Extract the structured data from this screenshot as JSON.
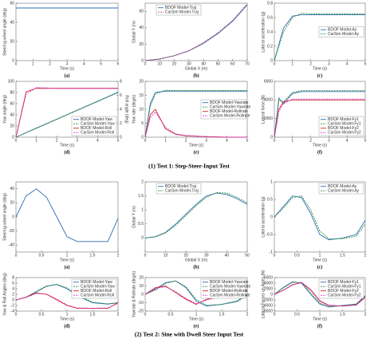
{
  "figure": {
    "captions": [
      "(1) Test 1: Step-Steer-Input Test",
      "(2) Test 2: Sine with Dwell Steer Input Test"
    ]
  },
  "chart_data": [
    {
      "type": "line",
      "label": "(a)",
      "xlabel": "Time (s)",
      "ylabel": "Steering wheel angle (deg)",
      "xlim": [
        0,
        6
      ],
      "xticks": [
        0,
        1,
        2,
        3,
        4,
        5,
        6
      ],
      "ylim": [
        0,
        60
      ],
      "yticks": [
        0,
        20,
        40,
        60
      ],
      "x": [
        0,
        6
      ],
      "series": [
        {
          "color": "#2c6fb5",
          "dashed": false,
          "values": [
            55,
            55
          ]
        }
      ]
    },
    {
      "type": "line",
      "label": "(b)",
      "xlabel": "Global X (m)",
      "ylabel": "Global Y (m)",
      "legend": "upper left",
      "xlim": [
        0,
        70
      ],
      "xticks": [
        0,
        10,
        20,
        30,
        40,
        50,
        60,
        70
      ],
      "ylim": [
        0,
        70
      ],
      "yticks": [
        0,
        20,
        40,
        60
      ],
      "x": [
        0,
        10,
        20,
        30,
        40,
        50,
        60,
        70
      ],
      "series": [
        {
          "name": "BDOF Model-Traj",
          "color": "#2c6fb5",
          "dashed": false,
          "values": [
            0,
            2,
            6,
            12,
            21,
            33,
            48,
            68
          ]
        },
        {
          "name": "CarSim Model-Traj",
          "color": "#cc3366",
          "dashed": true,
          "values": [
            0,
            2,
            6,
            12,
            22,
            34,
            49,
            69
          ]
        }
      ]
    },
    {
      "type": "line",
      "label": "(c)",
      "xlabel": "Time (s)",
      "ylabel": "Lateral acceleration (g)",
      "legend": "center right",
      "xlim": [
        0,
        5
      ],
      "xticks": [
        0,
        1,
        2,
        3,
        4,
        5
      ],
      "ylim": [
        0,
        0.8
      ],
      "yticks": [
        0,
        0.2,
        0.4,
        0.6,
        0.8
      ],
      "x": [
        0,
        0.5,
        1,
        1.5,
        2,
        3,
        4,
        5
      ],
      "series": [
        {
          "name": "BDOF Model-Ay",
          "color": "#2c6fb5",
          "dashed": false,
          "values": [
            0,
            0.45,
            0.62,
            0.64,
            0.64,
            0.64,
            0.64,
            0.64
          ]
        },
        {
          "name": "CarSim Model-Ay",
          "color": "#2e8b3a",
          "dashed": true,
          "values": [
            0,
            0.4,
            0.6,
            0.66,
            0.65,
            0.65,
            0.65,
            0.65
          ]
        }
      ]
    },
    {
      "type": "line",
      "label": "(d)",
      "xlabel": "Time (s)",
      "ylabel": "Yaw angle (deg)",
      "y2label": "Roll angle (deg)",
      "legend": "lower right",
      "xlim": [
        0,
        5
      ],
      "xticks": [
        0,
        1,
        2,
        3,
        4,
        5
      ],
      "ylim": [
        0,
        100
      ],
      "yticks": [
        0,
        20,
        40,
        60,
        80,
        100
      ],
      "y2lim": [
        0,
        8
      ],
      "y2ticks": [
        0,
        2,
        4,
        6,
        8
      ],
      "x": [
        0,
        0.5,
        1,
        2,
        3,
        4,
        5
      ],
      "series": [
        {
          "name": "BDOF Model-Yaw",
          "color": "#2c6fb5",
          "dashed": false,
          "values": [
            0,
            8,
            16,
            32,
            48,
            64,
            80
          ]
        },
        {
          "name": "CarSim Model-Yaw",
          "color": "#2e8b3a",
          "dashed": true,
          "values": [
            0,
            8.3,
            16.5,
            32.5,
            48.6,
            64.5,
            81
          ]
        },
        {
          "name": "BDOF Model-Roll",
          "color": "#d62728",
          "dashed": false,
          "axis": "y2",
          "values": [
            0,
            6.5,
            7,
            7,
            7,
            7,
            7
          ]
        },
        {
          "name": "CarSim Model-Roll",
          "color": "#cc33cc",
          "dashed": true,
          "axis": "y2",
          "values": [
            0,
            6.2,
            7.1,
            7,
            7,
            7,
            7
          ]
        }
      ]
    },
    {
      "type": "line",
      "label": "(e)",
      "xlabel": "Time (s)",
      "ylabel": "Yaw rate (deg/s)",
      "legend": "center right",
      "xlim": [
        0,
        5
      ],
      "xticks": [
        0,
        1,
        2,
        3,
        4,
        5
      ],
      "ylim": [
        0,
        20
      ],
      "yticks": [
        0,
        5,
        10,
        15,
        20
      ],
      "x": [
        0,
        0.25,
        0.5,
        1,
        1.5,
        2,
        3,
        4,
        5
      ],
      "series": [
        {
          "name": "BDOF Model-Yawrate",
          "color": "#2c6fb5",
          "dashed": false,
          "values": [
            0,
            12,
            16,
            16.5,
            16.5,
            16.5,
            16.5,
            16.5,
            16.5
          ]
        },
        {
          "name": "CarSim Model-Yawrate",
          "color": "#2e8b3a",
          "dashed": true,
          "values": [
            0,
            11,
            15.5,
            16.8,
            16.7,
            16.7,
            16.7,
            16.7,
            16.7
          ]
        },
        {
          "name": "BDOF Model-Rollrate",
          "color": "#d62728",
          "dashed": false,
          "values": [
            0,
            8,
            10,
            3,
            1,
            0.5,
            0.2,
            0,
            0
          ]
        },
        {
          "name": "CarSim Model-Rollrate",
          "color": "#cc33cc",
          "dashed": true,
          "values": [
            0,
            7,
            9,
            3.5,
            1.2,
            0.6,
            0.2,
            0,
            0
          ]
        }
      ]
    },
    {
      "type": "line",
      "label": "(f)",
      "xlabel": "Time (s)",
      "ylabel": "Lateral force (N)",
      "legend": "lower right",
      "xlim": [
        0,
        5
      ],
      "xticks": [
        0,
        1,
        2,
        3,
        4,
        5
      ],
      "ylim": [
        0,
        6000
      ],
      "yticks": [
        0,
        2000,
        4000,
        6000
      ],
      "x": [
        0,
        0.25,
        0.5,
        1,
        1.5,
        2,
        3,
        4,
        5
      ],
      "series": [
        {
          "name": "BDOF Model-Fy1",
          "color": "#2c6fb5",
          "dashed": false,
          "values": [
            0,
            4200,
            3600,
            4700,
            4900,
            4900,
            4900,
            4900,
            4900
          ]
        },
        {
          "name": "CarSim Model-Fy1",
          "color": "#2e8b3a",
          "dashed": true,
          "values": [
            0,
            4000,
            3800,
            4800,
            5000,
            5000,
            5000,
            5000,
            5000
          ]
        },
        {
          "name": "BDOF Model-Fy2",
          "color": "#d62728",
          "dashed": false,
          "values": [
            0,
            3000,
            3800,
            4000,
            4000,
            4000,
            4000,
            4000,
            4000
          ]
        },
        {
          "name": "CarSim Model-Fy2",
          "color": "#cc33cc",
          "dashed": true,
          "values": [
            0,
            2800,
            3600,
            4100,
            4100,
            4100,
            4100,
            4100,
            4100
          ]
        }
      ]
    },
    {
      "type": "line",
      "label": "(a)",
      "xlabel": "Time (s)",
      "ylabel": "Steering wheel angle (deg)",
      "xlim": [
        0,
        2
      ],
      "xticks": [
        0,
        0.5,
        1,
        1.5,
        2
      ],
      "ylim": [
        -50,
        50
      ],
      "yticks": [
        -40,
        -20,
        0,
        20,
        40
      ],
      "x": [
        0,
        0.2,
        0.4,
        0.6,
        0.8,
        1,
        1.2,
        1.5,
        1.8,
        2
      ],
      "series": [
        {
          "color": "#2c6fb5",
          "dashed": false,
          "values": [
            0,
            30,
            40,
            28,
            0,
            -28,
            -35,
            -35,
            -35,
            -2
          ]
        }
      ]
    },
    {
      "type": "line",
      "label": "(b)",
      "xlabel": "Global X (m)",
      "ylabel": "Global Y (m)",
      "legend": "upper left",
      "xlim": [
        0,
        50
      ],
      "xticks": [
        0,
        10,
        20,
        30,
        40,
        50
      ],
      "ylim": [
        -0.5,
        2
      ],
      "yticks": [
        0,
        0.5,
        1,
        1.5,
        2
      ],
      "x": [
        0,
        5,
        10,
        15,
        20,
        25,
        30,
        35,
        40,
        45,
        50
      ],
      "series": [
        {
          "name": "BDOF Model-Traj",
          "color": "#2c6fb5",
          "dashed": false,
          "values": [
            0,
            0.05,
            0.2,
            0.5,
            0.85,
            1.2,
            1.5,
            1.6,
            1.55,
            1.4,
            1.2
          ]
        },
        {
          "name": "CarSim Model-Traj",
          "color": "#2e8b3a",
          "dashed": true,
          "values": [
            0,
            0.04,
            0.18,
            0.45,
            0.8,
            1.15,
            1.45,
            1.62,
            1.6,
            1.45,
            1.25
          ]
        }
      ]
    },
    {
      "type": "line",
      "label": "(c)",
      "xlabel": "Time (s)",
      "ylabel": "Lateral acceleration (g)",
      "legend": "upper right",
      "xlim": [
        0,
        2
      ],
      "xticks": [
        0,
        0.5,
        1,
        1.5,
        2
      ],
      "ylim": [
        -1,
        1
      ],
      "yticks": [
        -1,
        -0.5,
        0,
        0.5,
        1
      ],
      "x": [
        0,
        0.2,
        0.4,
        0.6,
        0.8,
        1,
        1.2,
        1.5,
        1.8,
        2
      ],
      "series": [
        {
          "name": "BDOF Model-Ay",
          "color": "#2c6fb5",
          "dashed": false,
          "values": [
            0,
            0.3,
            0.6,
            0.55,
            0.1,
            -0.5,
            -0.65,
            -0.6,
            -0.5,
            -0.1
          ]
        },
        {
          "name": "CarSim Model-Ay",
          "color": "#2e8b3a",
          "dashed": true,
          "values": [
            0,
            0.25,
            0.55,
            0.6,
            0.2,
            -0.4,
            -0.62,
            -0.62,
            -0.55,
            -0.2
          ]
        }
      ]
    },
    {
      "type": "line",
      "label": "(d)",
      "xlabel": "Time (s)",
      "ylabel": "Yaw & Roll Angles (deg)",
      "legend": "upper right",
      "xlim": [
        0,
        2
      ],
      "xticks": [
        0,
        0.5,
        1,
        1.5,
        2
      ],
      "ylim": [
        -4,
        8
      ],
      "yticks": [
        -4,
        -2,
        0,
        2,
        4,
        6,
        8
      ],
      "x": [
        0,
        0.2,
        0.4,
        0.6,
        0.8,
        1,
        1.2,
        1.5,
        1.8,
        2
      ],
      "series": [
        {
          "name": "BDOF Model-Yaw",
          "color": "#2c6fb5",
          "dashed": false,
          "values": [
            0,
            1,
            3,
            5,
            5.5,
            4,
            1.5,
            -1,
            -1.5,
            -1
          ]
        },
        {
          "name": "CarSim Model-Yaw",
          "color": "#2e8b3a",
          "dashed": true,
          "values": [
            0,
            0.9,
            2.8,
            4.8,
            5.6,
            4.3,
            1.8,
            -0.8,
            -1.4,
            -1
          ]
        },
        {
          "name": "BDOF Model-Roll",
          "color": "#d62728",
          "dashed": false,
          "values": [
            0,
            1,
            2.5,
            2,
            0,
            -2,
            -3,
            -3,
            -3,
            -1
          ]
        },
        {
          "name": "CarSim Model-Roll",
          "color": "#cc33cc",
          "dashed": true,
          "values": [
            0,
            0.9,
            2.3,
            2.1,
            0.3,
            -1.8,
            -2.9,
            -3,
            -2.9,
            -1.2
          ]
        }
      ]
    },
    {
      "type": "line",
      "label": "(e)",
      "xlabel": "Time (s)",
      "ylabel": "Yawrate & Rollrate (deg/s)",
      "legend": "upper right",
      "xlim": [
        0,
        2
      ],
      "xticks": [
        0,
        0.5,
        1,
        1.5,
        2
      ],
      "ylim": [
        -20,
        20
      ],
      "yticks": [
        -20,
        -10,
        0,
        10,
        20
      ],
      "x": [
        0,
        0.2,
        0.4,
        0.6,
        0.8,
        1,
        1.2,
        1.5,
        1.8,
        2
      ],
      "series": [
        {
          "name": "BDOF Model-Yawrate",
          "color": "#2c6fb5",
          "dashed": false,
          "values": [
            0,
            6,
            14,
            16,
            8,
            -8,
            -14,
            -12,
            -8,
            0
          ]
        },
        {
          "name": "CarSim Model-Yawrate",
          "color": "#2e8b3a",
          "dashed": true,
          "values": [
            0,
            5,
            13,
            16,
            9,
            -6,
            -13,
            -12,
            -9,
            -1
          ]
        },
        {
          "name": "BDOF Model-Rollrate",
          "color": "#d62728",
          "dashed": false,
          "values": [
            0,
            8,
            10,
            2,
            -6,
            -12,
            -6,
            -2,
            -1,
            5
          ]
        },
        {
          "name": "CarSim Model-Rollrate",
          "color": "#cc33cc",
          "dashed": true,
          "values": [
            0,
            7,
            9,
            3,
            -5,
            -11,
            -7,
            -2,
            -1,
            4
          ]
        }
      ]
    },
    {
      "type": "line",
      "label": "(f)",
      "xlabel": "Time (s)",
      "ylabel": "Lateral Forces on Axles (N)",
      "legend": "upper right",
      "xlim": [
        0,
        2
      ],
      "xticks": [
        0,
        0.5,
        1,
        1.5,
        2
      ],
      "ylim": [
        -6000,
        6000
      ],
      "yticks": [
        -6000,
        -4000,
        -2000,
        0,
        2000,
        4000,
        6000
      ],
      "x": [
        0,
        0.2,
        0.4,
        0.6,
        0.8,
        1,
        1.2,
        1.5,
        1.8,
        2
      ],
      "series": [
        {
          "name": "BDOF Model-Fy1",
          "color": "#2c6fb5",
          "dashed": false,
          "values": [
            0,
            2500,
            4500,
            4000,
            0,
            -3500,
            -4500,
            -4000,
            -3500,
            -500
          ]
        },
        {
          "name": "CarSim Model-Fy1",
          "color": "#2e8b3a",
          "dashed": true,
          "values": [
            0,
            2300,
            4300,
            4200,
            500,
            -3200,
            -4400,
            -4100,
            -3600,
            -700
          ]
        },
        {
          "name": "BDOF Model-Fy2",
          "color": "#d62728",
          "dashed": false,
          "values": [
            0,
            1500,
            3500,
            4200,
            1500,
            -2500,
            -4000,
            -4200,
            -3800,
            -1000
          ]
        },
        {
          "name": "CarSim Model-Fy2",
          "color": "#cc33cc",
          "dashed": true,
          "values": [
            0,
            1400,
            3300,
            4300,
            1800,
            -2200,
            -3900,
            -4200,
            -3900,
            -1200
          ]
        }
      ]
    }
  ]
}
